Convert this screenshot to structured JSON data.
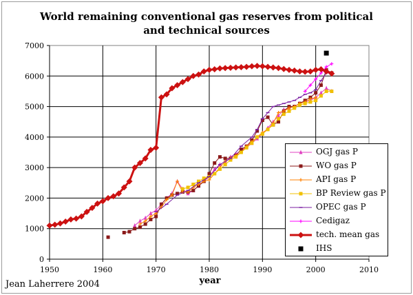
{
  "title_line1": "World remaining conventional gas reserves from political",
  "title_line2": "and technical sources",
  "credit": "Jean Laherrere 2004",
  "chart_data": {
    "type": "line",
    "xlabel": "year",
    "ylabel": "",
    "xlim": [
      1950,
      2010
    ],
    "ylim": [
      0,
      7000
    ],
    "xticks": [
      1950,
      1960,
      1970,
      1980,
      1990,
      2000,
      2010
    ],
    "yticks": [
      0,
      1000,
      2000,
      3000,
      4000,
      5000,
      6000,
      7000
    ],
    "legend_position": "lower-right",
    "series": [
      {
        "name": "OGJ gas P",
        "color": "#e040c0",
        "marker": "triangle",
        "width": 1,
        "x": [
          1966,
          1967,
          1968,
          1969,
          1970,
          1971,
          1972,
          1973,
          1974,
          1975,
          1976,
          1977,
          1978,
          1979,
          1980,
          1981,
          1982,
          1983,
          1984,
          1985,
          1986,
          1987,
          1988,
          1989,
          1990,
          1991,
          1992,
          1993,
          1994,
          1995,
          1996,
          1997,
          1998,
          1999,
          2000,
          2001,
          2002,
          2003
        ],
        "y": [
          1100,
          1250,
          1350,
          1500,
          1600,
          1800,
          2000,
          2150,
          2550,
          2300,
          2150,
          2250,
          2400,
          2550,
          2700,
          2950,
          3100,
          3200,
          3350,
          3450,
          3550,
          3700,
          3800,
          3950,
          4100,
          4300,
          4500,
          4700,
          4900,
          4950,
          5000,
          5100,
          5150,
          5200,
          5300,
          5450,
          5600,
          5500
        ]
      },
      {
        "name": "WO gas P",
        "color": "#8b1a1a",
        "marker": "square",
        "width": 1,
        "x": [
          1961,
          1964,
          1965,
          1966,
          1967,
          1968,
          1969,
          1970,
          1971,
          1972,
          1973,
          1974,
          1975,
          1976,
          1977,
          1978,
          1979,
          1980,
          1981,
          1982,
          1983,
          1984,
          1985,
          1986,
          1987,
          1988,
          1989,
          1990,
          1991,
          1992,
          1993,
          1994,
          1995,
          1996,
          1997,
          1998,
          1999,
          2000,
          2001,
          2002,
          2003
        ],
        "y": [
          720,
          870,
          900,
          1000,
          1050,
          1150,
          1300,
          1400,
          1800,
          2000,
          2100,
          2150,
          2200,
          2200,
          2250,
          2400,
          2550,
          2800,
          3150,
          3350,
          3300,
          3300,
          3400,
          3600,
          3700,
          3900,
          4200,
          4550,
          4650,
          4400,
          4500,
          4850,
          5000,
          5000,
          5100,
          5200,
          5300,
          5450,
          5700,
          6200,
          6100
        ]
      },
      {
        "name": "API  gas P",
        "color": "#ff8000",
        "marker": "plus",
        "width": 1,
        "x": [
          1967,
          1968,
          1969,
          1970,
          1971,
          1972,
          1973,
          1974,
          1975,
          1976,
          1977,
          1978,
          1979,
          1980,
          1981,
          1982,
          1983,
          1984,
          1985,
          1986,
          1987,
          1988,
          1989,
          1990,
          1991,
          1992,
          1993,
          1994,
          1995,
          1996,
          1997,
          1998,
          1999,
          2000
        ],
        "y": [
          1150,
          1250,
          1400,
          1500,
          1700,
          1950,
          2100,
          2550,
          2200,
          2200,
          2350,
          2450,
          2550,
          2600,
          2800,
          3000,
          3200,
          3300,
          3400,
          3500,
          3700,
          3850,
          4000,
          4150,
          4250,
          4450,
          4800,
          4850,
          4950,
          5000,
          5100,
          5150,
          5250,
          5300
        ]
      },
      {
        "name": "BP Review gas P",
        "color": "#f0c000",
        "marker": "square",
        "width": 1,
        "x": [
          1975,
          1976,
          1977,
          1978,
          1979,
          1980,
          1981,
          1982,
          1983,
          1984,
          1985,
          1986,
          1987,
          1988,
          1989,
          1990,
          1991,
          1992,
          1993,
          1994,
          1995,
          1996,
          1997,
          1998,
          1999,
          2000,
          2001,
          2002,
          2003
        ],
        "y": [
          2300,
          2350,
          2450,
          2550,
          2650,
          2700,
          2800,
          2950,
          3100,
          3250,
          3350,
          3500,
          3650,
          3800,
          4000,
          4100,
          4250,
          4400,
          4600,
          4750,
          4850,
          4950,
          5050,
          5100,
          5150,
          5200,
          5350,
          5500,
          5500
        ]
      },
      {
        "name": "OPEC gas P",
        "color": "#7b1fa2",
        "marker": "dash",
        "width": 1,
        "x": [
          1970,
          1972,
          1974,
          1976,
          1978,
          1980,
          1982,
          1984,
          1986,
          1988,
          1989,
          1990,
          1991,
          1992,
          1993,
          1994,
          1995,
          1996,
          1997,
          1998,
          1999,
          2000,
          2001,
          2002
        ],
        "y": [
          1550,
          1800,
          2100,
          2250,
          2500,
          2700,
          3100,
          3300,
          3700,
          4000,
          4250,
          4600,
          4800,
          5000,
          5050,
          5100,
          5150,
          5200,
          5300,
          5400,
          5450,
          5550,
          5850,
          6100
        ]
      },
      {
        "name": "Cedigaz",
        "color": "#ff00ff",
        "marker": "plus",
        "width": 1,
        "x": [
          1998,
          1999,
          2000,
          2001,
          2002,
          2003
        ],
        "y": [
          5500,
          5700,
          5900,
          6100,
          6300,
          6400
        ]
      },
      {
        "name": "tech. mean gas",
        "color": "#cc1111",
        "marker": "diamond",
        "width": 3,
        "x": [
          1950,
          1951,
          1952,
          1953,
          1954,
          1955,
          1956,
          1957,
          1958,
          1959,
          1960,
          1961,
          1962,
          1963,
          1964,
          1965,
          1966,
          1967,
          1968,
          1969,
          1970,
          1971,
          1972,
          1973,
          1974,
          1975,
          1976,
          1977,
          1978,
          1979,
          1980,
          1981,
          1982,
          1983,
          1984,
          1985,
          1986,
          1987,
          1988,
          1989,
          1990,
          1991,
          1992,
          1993,
          1994,
          1995,
          1996,
          1997,
          1998,
          1999,
          2000,
          2001,
          2002,
          2003
        ],
        "y": [
          1100,
          1130,
          1170,
          1230,
          1300,
          1330,
          1400,
          1550,
          1680,
          1820,
          1900,
          2000,
          2060,
          2150,
          2350,
          2550,
          3000,
          3150,
          3300,
          3580,
          3650,
          5300,
          5400,
          5600,
          5700,
          5800,
          5900,
          6000,
          6050,
          6150,
          6200,
          6220,
          6250,
          6260,
          6270,
          6280,
          6290,
          6300,
          6320,
          6330,
          6320,
          6300,
          6280,
          6260,
          6230,
          6200,
          6180,
          6150,
          6140,
          6150,
          6200,
          6220,
          6150,
          6080
        ]
      },
      {
        "name": "IHS",
        "color": "#000000",
        "marker": "square",
        "width": 0,
        "x": [
          2002
        ],
        "y": [
          6750
        ]
      }
    ]
  }
}
